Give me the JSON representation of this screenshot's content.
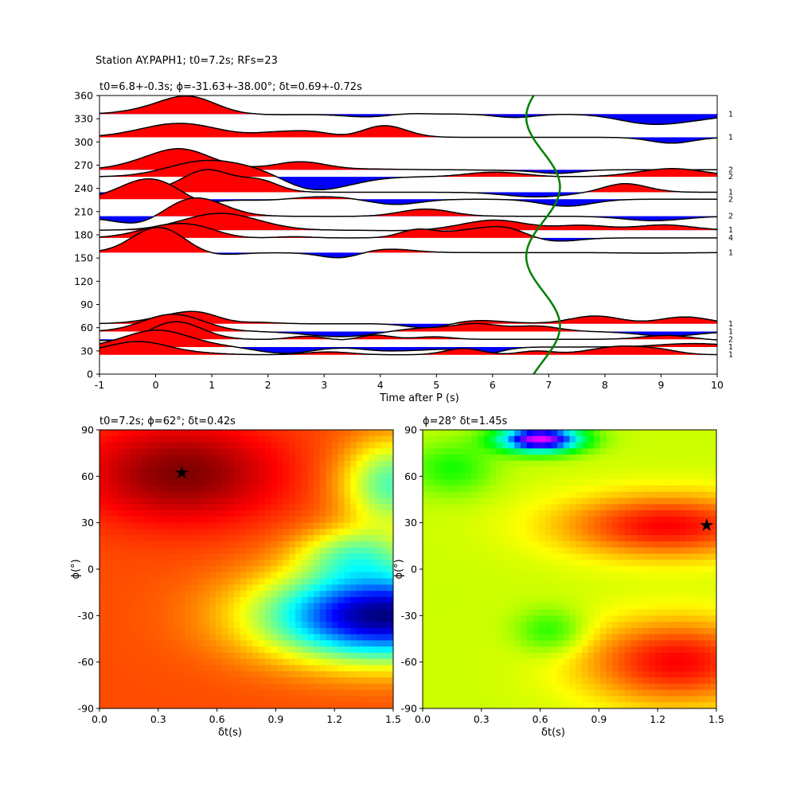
{
  "suptitle": "Station AY.PAPH1; t0=7.2s; RFs=23",
  "colors": {
    "positive": "#ff0000",
    "negative": "#0000ff",
    "trace": "#000000",
    "curve": "#008000"
  },
  "panel_top": {
    "title": "t0=6.8+-0.3s; ϕ=-31.63+-38.00°; δt=0.69+-0.72s",
    "xlabel": "Time after P (s)",
    "xticks": [
      "-1",
      "0",
      "1",
      "2",
      "3",
      "4",
      "5",
      "6",
      "7",
      "8",
      "9",
      "10"
    ],
    "yticks": [
      "0",
      "30",
      "60",
      "90",
      "120",
      "150",
      "180",
      "210",
      "240",
      "270",
      "300",
      "330",
      "360"
    ]
  },
  "panel_left": {
    "title": "t0=7.2s; ϕ=62°; δt=0.42s",
    "xlabel": "δt(s)",
    "ylabel": "ϕ(°)",
    "xticks": [
      "0.0",
      "0.3",
      "0.6",
      "0.9",
      "1.2",
      "1.5"
    ],
    "yticks": [
      "-90",
      "-60",
      "-30",
      "0",
      "30",
      "60",
      "90"
    ]
  },
  "panel_right": {
    "title": "ϕ=28° δt=1.45s",
    "xlabel": "δt(s)",
    "ylabel": "ϕ(°)",
    "xticks": [
      "0.0",
      "0.3",
      "0.6",
      "0.9",
      "1.2",
      "1.5"
    ],
    "yticks": [
      "-90",
      "-60",
      "-30",
      "0",
      "30",
      "60",
      "90"
    ]
  },
  "chart_data": [
    {
      "type": "line",
      "title": "t0=6.8+-0.3s; ϕ=-31.63+-38.00°; δt=0.69+-0.72s",
      "xlabel": "Time after P (s)",
      "ylabel": "",
      "xlim": [
        -1,
        10
      ],
      "ylim": [
        0,
        360
      ],
      "traces": [
        {
          "baseaz": 336,
          "count_label": "1"
        },
        {
          "baseaz": 306,
          "count_label": "1"
        },
        {
          "baseaz": 264,
          "count_label": "2"
        },
        {
          "baseaz": 255,
          "count_label": "2"
        },
        {
          "baseaz": 235,
          "count_label": "1"
        },
        {
          "baseaz": 226,
          "count_label": "2"
        },
        {
          "baseaz": 204,
          "count_label": "2"
        },
        {
          "baseaz": 186,
          "count_label": "1"
        },
        {
          "baseaz": 176,
          "count_label": "4"
        },
        {
          "baseaz": 157,
          "count_label": "1"
        },
        {
          "baseaz": 65,
          "count_label": "1"
        },
        {
          "baseaz": 55,
          "count_label": "1"
        },
        {
          "baseaz": 45,
          "count_label": "2"
        },
        {
          "baseaz": 35,
          "count_label": "1"
        },
        {
          "baseaz": 25,
          "count_label": "1"
        }
      ],
      "t0_curve": {
        "center": 6.9,
        "amplitude": 0.3,
        "period_deg": 180,
        "phase_deg": 62
      }
    },
    {
      "type": "heatmap",
      "title": "t0=7.2s; ϕ=62°; δt=0.42s",
      "xlabel": "δt(s)",
      "ylabel": "ϕ(°)",
      "xlim": [
        0,
        1.5
      ],
      "ylim": [
        -90,
        90
      ],
      "optimum": {
        "dt": 0.42,
        "phi": 62
      },
      "colormap": "jet"
    },
    {
      "type": "heatmap",
      "title": "ϕ=28° δt=1.45s",
      "xlabel": "δt(s)",
      "ylabel": "ϕ(°)",
      "xlim": [
        0,
        1.5
      ],
      "ylim": [
        -90,
        90
      ],
      "optimum": {
        "dt": 1.45,
        "phi": 28
      },
      "colormap": "hsv"
    }
  ]
}
